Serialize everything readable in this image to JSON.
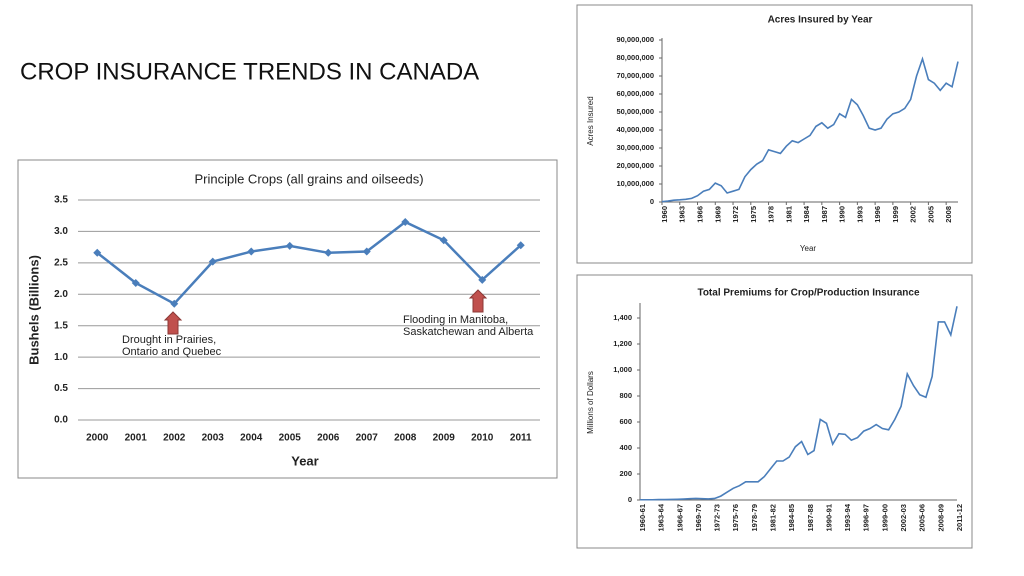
{
  "title": "CROP INSURANCE TRENDS IN CANADA",
  "chart_data": [
    {
      "type": "line",
      "title": "Principle Crops (all grains and oilseeds)",
      "x_label": "Year",
      "y_label": "Bushels (Billions)",
      "categories": [
        "2000",
        "2001",
        "2002",
        "2003",
        "2004",
        "2005",
        "2006",
        "2007",
        "2008",
        "2009",
        "2010",
        "2011"
      ],
      "series": [
        {
          "name": "Principle Crops",
          "color": "#4a7ebb",
          "values": [
            2.66,
            2.18,
            1.85,
            2.52,
            2.68,
            2.77,
            2.66,
            2.68,
            3.15,
            2.86,
            2.23,
            2.78
          ]
        }
      ],
      "ylim": [
        0,
        3.5
      ],
      "yticks": [
        {
          "value": 0,
          "label": "0.0"
        },
        0.5,
        {
          "value": 1,
          "label": "1.0"
        },
        1.5,
        {
          "value": 2,
          "label": "2.0"
        },
        2.5,
        {
          "value": 3,
          "label": "3.0"
        },
        3.5
      ],
      "grid": true,
      "marker": "diamond",
      "annotations": [
        [
          "Drought in Prairies,",
          "Ontario and Quebec"
        ],
        [
          "Flooding in Manitoba,",
          "Saskatchewan and Alberta"
        ]
      ]
    },
    {
      "type": "line",
      "title": "Acres Insured by Year",
      "x_label": "Year",
      "y_label": "Acres Insured",
      "x": [
        1960,
        1961,
        1962,
        1963,
        1964,
        1965,
        1966,
        1967,
        1968,
        1969,
        1970,
        1971,
        1972,
        1973,
        1974,
        1975,
        1976,
        1977,
        1978,
        1979,
        1980,
        1981,
        1982,
        1983,
        1984,
        1985,
        1986,
        1987,
        1988,
        1989,
        1990,
        1991,
        1992,
        1993,
        1994,
        1995,
        1996,
        1997,
        1998,
        1999,
        2000,
        2001,
        2002,
        2003,
        2004,
        2005,
        2006,
        2007,
        2008,
        2009,
        2010
      ],
      "series": [
        {
          "name": "Acres Insured",
          "color": "#4a7ebb",
          "values": [
            200000,
            500000,
            1000000,
            1200000,
            1500000,
            2000000,
            3500000,
            6000000,
            7000000,
            10500000,
            9000000,
            5000000,
            6000000,
            7000000,
            14000000,
            18000000,
            21000000,
            23000000,
            29000000,
            28000000,
            27000000,
            31000000,
            34000000,
            33000000,
            35000000,
            37000000,
            42000000,
            44000000,
            41000000,
            43000000,
            49000000,
            47000000,
            57000000,
            54000000,
            48000000,
            41000000,
            40000000,
            41000000,
            46000000,
            49000000,
            50000000,
            52000000,
            57000000,
            70000000,
            79500000,
            68000000,
            66000000,
            62000000,
            66000000,
            64000000,
            78000000
          ]
        }
      ],
      "xlim": [
        1960,
        2010
      ],
      "xticks": [
        1960,
        1963,
        1966,
        1969,
        1972,
        1975,
        1978,
        1981,
        1984,
        1987,
        1990,
        1993,
        1996,
        1999,
        2002,
        2005,
        2008
      ],
      "ylim": [
        0,
        90000000
      ],
      "yticks": [
        0,
        {
          "value": 10000000,
          "label": "10,000,000"
        },
        {
          "value": 20000000,
          "label": "20,000,000"
        },
        {
          "value": 30000000,
          "label": "30,000,000"
        },
        {
          "value": 40000000,
          "label": "40,000,000"
        },
        {
          "value": 50000000,
          "label": "50,000,000"
        },
        {
          "value": 60000000,
          "label": "60,000,000"
        },
        {
          "value": 70000000,
          "label": "70,000,000"
        },
        {
          "value": 80000000,
          "label": "80,000,000"
        },
        {
          "value": 90000000,
          "label": "90,000,000"
        }
      ],
      "grid": false
    },
    {
      "type": "line",
      "title": "Total Premiums for Crop/Production Insurance",
      "y_label": "Millions of Dollars",
      "categories": [
        "1960-61",
        null,
        null,
        "1963-64",
        null,
        null,
        "1966-67",
        null,
        null,
        "1969-70",
        null,
        null,
        "1972-73",
        null,
        null,
        "1975-76",
        null,
        null,
        "1978-79",
        null,
        null,
        "1981-82",
        null,
        null,
        "1984-85",
        null,
        null,
        "1987-88",
        null,
        null,
        "1990-91",
        null,
        null,
        "1993-94",
        null,
        null,
        "1996-97",
        null,
        null,
        "1999-00",
        null,
        null,
        "2002-03",
        null,
        null,
        "2005-06",
        null,
        null,
        "2008-09",
        null,
        null,
        "2011-12"
      ],
      "series": [
        {
          "name": "Total Premiums",
          "color": "#4a7ebb",
          "values": [
            2,
            2,
            2,
            3,
            3,
            4,
            5,
            7,
            10,
            12,
            10,
            8,
            12,
            30,
            60,
            90,
            110,
            140,
            140,
            140,
            180,
            240,
            300,
            300,
            330,
            410,
            450,
            350,
            380,
            620,
            590,
            430,
            510,
            505,
            460,
            480,
            530,
            550,
            580,
            550,
            540,
            620,
            720,
            970,
            880,
            810,
            790,
            950,
            1370,
            1370,
            1270,
            1490
          ]
        }
      ],
      "ylim": [
        0,
        1500
      ],
      "yticks": [
        0,
        200,
        400,
        600,
        800,
        {
          "value": 1000,
          "label": "1,000"
        },
        {
          "value": 1200,
          "label": "1,200"
        },
        {
          "value": 1400,
          "label": "1,400"
        }
      ],
      "grid": false
    }
  ]
}
